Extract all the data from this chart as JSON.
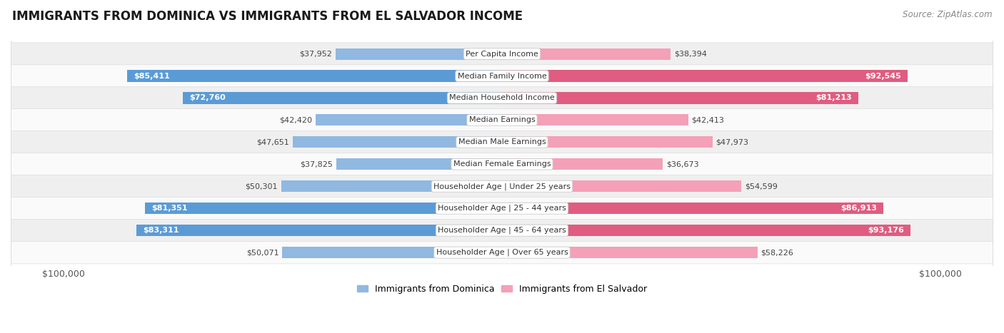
{
  "title": "IMMIGRANTS FROM DOMINICA VS IMMIGRANTS FROM EL SALVADOR INCOME",
  "source": "Source: ZipAtlas.com",
  "categories": [
    "Per Capita Income",
    "Median Family Income",
    "Median Household Income",
    "Median Earnings",
    "Median Male Earnings",
    "Median Female Earnings",
    "Householder Age | Under 25 years",
    "Householder Age | 25 - 44 years",
    "Householder Age | 45 - 64 years",
    "Householder Age | Over 65 years"
  ],
  "dominica_values": [
    37952,
    85411,
    72760,
    42420,
    47651,
    37825,
    50301,
    81351,
    83311,
    50071
  ],
  "elsalvador_values": [
    38394,
    92545,
    81213,
    42413,
    47973,
    36673,
    54599,
    86913,
    93176,
    58226
  ],
  "max_value": 100000,
  "dominica_color": "#90b8e0",
  "elsalvador_color": "#f4a0b8",
  "dominica_strong_color": "#5b9bd5",
  "elsalvador_strong_color": "#e05c80",
  "dominica_text_threshold": 68000,
  "elsalvador_text_threshold": 68000,
  "bg_row_even": "#efefef",
  "bg_row_odd": "#fafafa",
  "label_box_color": "#ffffff",
  "label_box_edge": "#cccccc",
  "title_fontsize": 12,
  "source_fontsize": 8.5,
  "bar_label_fontsize": 8,
  "cat_label_fontsize": 8,
  "legend_fontsize": 9,
  "axis_label_fontsize": 9,
  "legend_dominica": "Immigrants from Dominica",
  "legend_elsalvador": "Immigrants from El Salvador"
}
